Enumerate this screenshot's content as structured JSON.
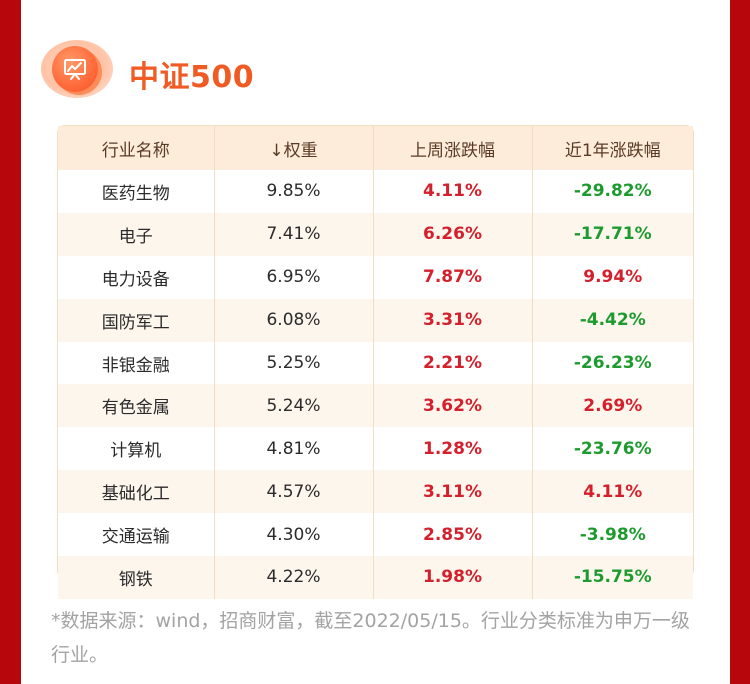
{
  "title": "中证500",
  "icon": "presentation-chart-icon",
  "colors": {
    "up": "#d3202c",
    "down": "#1e9b2e",
    "accent": "#f05a23"
  },
  "table": {
    "headers": [
      "行业名称",
      "↓权重",
      "上周涨跌幅",
      "近1年涨跌幅"
    ],
    "rows": [
      {
        "name": "医药生物",
        "weight": "9.85%",
        "week": "4.11%",
        "year": "-29.82%"
      },
      {
        "name": "电子",
        "weight": "7.41%",
        "week": "6.26%",
        "year": "-17.71%"
      },
      {
        "name": "电力设备",
        "weight": "6.95%",
        "week": "7.87%",
        "year": "9.94%"
      },
      {
        "name": "国防军工",
        "weight": "6.08%",
        "week": "3.31%",
        "year": "-4.42%"
      },
      {
        "name": "非银金融",
        "weight": "5.25%",
        "week": "2.21%",
        "year": "-26.23%"
      },
      {
        "name": "有色金属",
        "weight": "5.24%",
        "week": "3.62%",
        "year": "2.69%"
      },
      {
        "name": "计算机",
        "weight": "4.81%",
        "week": "1.28%",
        "year": "-23.76%"
      },
      {
        "name": "基础化工",
        "weight": "4.57%",
        "week": "3.11%",
        "year": "4.11%"
      },
      {
        "name": "交通运输",
        "weight": "4.30%",
        "week": "2.85%",
        "year": "-3.98%"
      },
      {
        "name": "钢铁",
        "weight": "4.22%",
        "week": "1.98%",
        "year": "-15.75%"
      }
    ]
  },
  "footnote": "*数据来源：wind，招商财富，截至2022/05/15。行业分类标准为申万一级行业。"
}
